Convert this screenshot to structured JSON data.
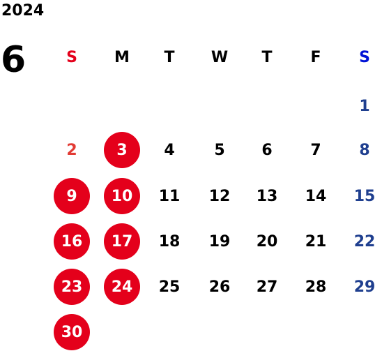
{
  "calendar": {
    "year": "2024",
    "month": "6",
    "weekdays": [
      "S",
      "M",
      "T",
      "W",
      "T",
      "F",
      "S"
    ],
    "colors": {
      "sunday_header": "#e4001b",
      "saturday_header": "#0012d6",
      "sunday_day": "#e23b34",
      "saturday_day": "#1f3f8f",
      "highlight_circle": "#e4001b"
    },
    "highlighted_days": [
      "3",
      "9",
      "10",
      "16",
      "17",
      "23",
      "24",
      "30"
    ],
    "weeks": [
      [
        "",
        "",
        "",
        "",
        "",
        "",
        "1"
      ],
      [
        "2",
        "3",
        "4",
        "5",
        "6",
        "7",
        "8"
      ],
      [
        "9",
        "10",
        "11",
        "12",
        "13",
        "14",
        "15"
      ],
      [
        "16",
        "17",
        "18",
        "19",
        "20",
        "21",
        "22"
      ],
      [
        "23",
        "24",
        "25",
        "26",
        "27",
        "28",
        "29"
      ],
      [
        "30",
        "",
        "",
        "",
        "",
        "",
        ""
      ]
    ]
  }
}
